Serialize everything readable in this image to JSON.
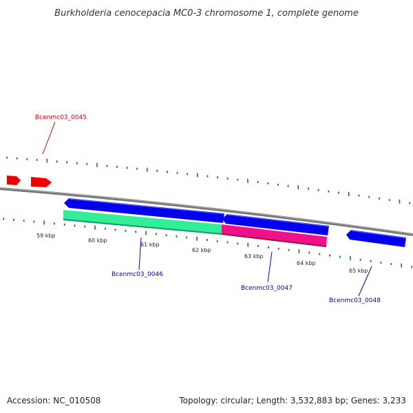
{
  "title": "Burkholderia cenocepacia MC0-3 chromosome 1, complete genome",
  "footer": {
    "accession": "Accession: NC_010508",
    "summary": "Topology: circular; Length: 3,532,883 bp; Genes: 3,233"
  },
  "colors": {
    "backbone": "#888888",
    "tick": "#1a7f1a",
    "red_gene": "#ee0000",
    "blue_gene": "#0000ee",
    "cyan_feature": "#33ee99",
    "pink_feature": "#ee1188",
    "red_label": "#cc0000",
    "blue_label": "#000099"
  },
  "scale": {
    "ticks": [
      {
        "label": "59 kbp",
        "kbp": 59
      },
      {
        "label": "60 kbp",
        "kbp": 60
      },
      {
        "label": "61 kbp",
        "kbp": 61
      },
      {
        "label": "62 kbp",
        "kbp": 62
      },
      {
        "label": "63 kbp",
        "kbp": 63
      },
      {
        "label": "64 kbp",
        "kbp": 64
      },
      {
        "label": "65 kbp",
        "kbp": 65
      }
    ]
  },
  "genes": [
    {
      "label": "Bcenmc03_0045",
      "color_key": "red_label"
    },
    {
      "label": "Bcenmc03_0046",
      "color_key": "blue_label"
    },
    {
      "label": "Bcenmc03_0047",
      "color_key": "blue_label"
    },
    {
      "label": "Bcenmc03_0048",
      "color_key": "blue_label"
    }
  ]
}
